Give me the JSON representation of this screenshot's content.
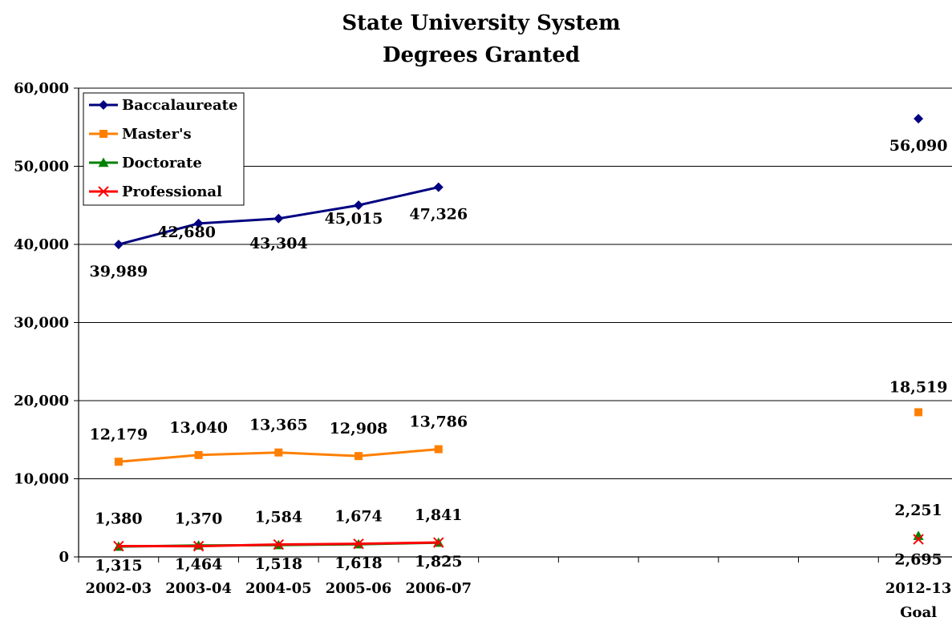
{
  "chart_data": {
    "type": "line",
    "title": [
      "State University System",
      "Degrees Granted"
    ],
    "xlabel": "",
    "ylabel": "",
    "categories": [
      "2002-03",
      "2003-04",
      "2004-05",
      "2005-06",
      "2006-07",
      "",
      "",
      "",
      "",
      "",
      "2012-13 Goal"
    ],
    "category_labels_shown": [
      "2002-03",
      "2003-04",
      "2004-05",
      "2005-06",
      "2006-07",
      "2012-13",
      "Goal"
    ],
    "ylim": [
      0,
      60000
    ],
    "yticks": [
      0,
      10000,
      20000,
      30000,
      40000,
      50000,
      60000
    ],
    "ytick_labels": [
      "0",
      "10,000",
      "20,000",
      "30,000",
      "40,000",
      "50,000",
      "60,000"
    ],
    "grid": true,
    "legend_position": "top-left",
    "series": [
      {
        "name": "Baccalaureate",
        "color": "#000080",
        "marker": "diamond",
        "values": [
          39989,
          42680,
          43304,
          45015,
          47326,
          null,
          null,
          null,
          null,
          null,
          56090
        ],
        "labels": [
          "39,989",
          "42,680",
          "43,304",
          "45,015",
          "47,326",
          "",
          "",
          "",
          "",
          "",
          "56,090"
        ]
      },
      {
        "name": "Master's",
        "color": "#FF7F00",
        "marker": "square",
        "values": [
          12179,
          13040,
          13365,
          12908,
          13786,
          null,
          null,
          null,
          null,
          null,
          18519
        ],
        "labels": [
          "12,179",
          "13,040",
          "13,365",
          "12,908",
          "13,786",
          "",
          "",
          "",
          "",
          "",
          "18,519"
        ]
      },
      {
        "name": "Doctorate",
        "color": "#008000",
        "marker": "triangle",
        "values": [
          1315,
          1464,
          1518,
          1618,
          1825,
          null,
          null,
          null,
          null,
          null,
          2695
        ],
        "labels": [
          "1,315",
          "1,464",
          "1,518",
          "1,618",
          "1,825",
          "",
          "",
          "",
          "",
          "",
          "2,695"
        ]
      },
      {
        "name": "Professional",
        "color": "#FF0000",
        "marker": "x",
        "values": [
          1380,
          1370,
          1584,
          1674,
          1841,
          null,
          null,
          null,
          null,
          null,
          2251
        ],
        "labels": [
          "1,380",
          "1,370",
          "1,584",
          "1,674",
          "1,841",
          "",
          "",
          "",
          "",
          "",
          "2,251"
        ]
      }
    ]
  }
}
